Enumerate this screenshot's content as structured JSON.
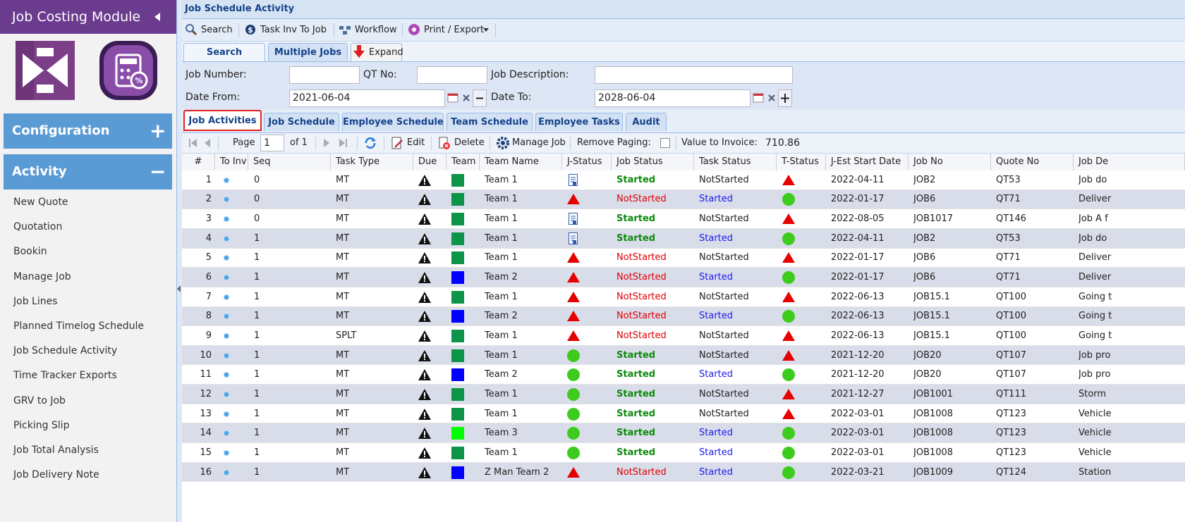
{
  "sidebar": {
    "title": "Job Costing Module",
    "sections": [
      {
        "label": "Configuration",
        "sign": "+"
      },
      {
        "label": "Activity",
        "sign": "−"
      }
    ],
    "menu": [
      "New Quote",
      "Quotation",
      "Bookin",
      "Manage Job",
      "Job Lines",
      "Planned Timelog Schedule",
      "Job Schedule Activity",
      "Time Tracker Exports",
      "GRV to Job",
      "Picking Slip",
      "Job Total Analysis",
      "Job Delivery Note"
    ]
  },
  "header": {
    "title": "Job Schedule Activity"
  },
  "toolbar": [
    "Search",
    "Task Inv To Job",
    "Workflow",
    "Print / Export"
  ],
  "search_tabs": [
    "Search",
    "Multiple Jobs",
    "Expand"
  ],
  "form": {
    "job_number": {
      "label": "Job Number:",
      "value": ""
    },
    "qt_no": {
      "label": "QT No:",
      "value": ""
    },
    "job_description": {
      "label": "Job Description:",
      "value": ""
    },
    "date_from": {
      "label": "Date From:",
      "value": "2021-06-04"
    },
    "date_to": {
      "label": "Date To:",
      "value": "2028-06-04"
    }
  },
  "tabs": [
    "Job Activities",
    "Job Schedule",
    "Employee Schedule",
    "Team Schedule",
    "Employee Tasks",
    "Audit"
  ],
  "paging": {
    "page_label": "Page",
    "page": "1",
    "of": "of 1",
    "edit": "Edit",
    "delete": "Delete",
    "manage": "Manage Job",
    "remove_paging": "Remove Paging:",
    "value_label": "Value to Invoice:",
    "value": "710.86"
  },
  "table": {
    "columns": [
      "#",
      "To Inv",
      "Seq",
      "Task Type",
      "Due",
      "Team C",
      "Team Name",
      "J-Status",
      "Job Status",
      "Task Status",
      "T-Status",
      "J-Est Start Date",
      "Job No",
      "Quote No",
      "Job De"
    ],
    "rows": [
      {
        "cells": [
          "1",
          "0",
          "MT",
          "Team 1",
          "Started",
          "NotStarted",
          "2022-04-11",
          "JOB2",
          "QT53",
          "Job do"
        ],
        "team_color": "#0c9448",
        "job_status_color": "#0b8a0b",
        "task_status_color": "#222222",
        "j_status": "doc",
        "t_status": "triangle"
      },
      {
        "cells": [
          "2",
          "0",
          "MT",
          "Team 1",
          "NotStarted",
          "Started",
          "2022-01-17",
          "JOB6",
          "QT71",
          "Deliver"
        ],
        "team_color": "#0c9448",
        "job_status_color": "#e00000",
        "task_status_color": "#1a1aee",
        "j_status": "triangle",
        "t_status": "circle"
      },
      {
        "cells": [
          "3",
          "0",
          "MT",
          "Team 1",
          "Started",
          "NotStarted",
          "2022-08-05",
          "JOB1017",
          "QT146",
          "Job A f"
        ],
        "team_color": "#0c9448",
        "job_status_color": "#0b8a0b",
        "task_status_color": "#222222",
        "j_status": "doc",
        "t_status": "triangle"
      },
      {
        "cells": [
          "4",
          "1",
          "MT",
          "Team 1",
          "Started",
          "Started",
          "2022-04-11",
          "JOB2",
          "QT53",
          "Job do"
        ],
        "team_color": "#0c9448",
        "job_status_color": "#0b8a0b",
        "task_status_color": "#1a1aee",
        "j_status": "doc",
        "t_status": "circle"
      },
      {
        "cells": [
          "5",
          "1",
          "MT",
          "Team 1",
          "NotStarted",
          "NotStarted",
          "2022-01-17",
          "JOB6",
          "QT71",
          "Deliver"
        ],
        "team_color": "#0c9448",
        "job_status_color": "#e00000",
        "task_status_color": "#222222",
        "j_status": "triangle",
        "t_status": "triangle"
      },
      {
        "cells": [
          "6",
          "1",
          "MT",
          "Team 2",
          "NotStarted",
          "Started",
          "2022-01-17",
          "JOB6",
          "QT71",
          "Deliver"
        ],
        "team_color": "#0000ff",
        "job_status_color": "#e00000",
        "task_status_color": "#1a1aee",
        "j_status": "triangle",
        "t_status": "circle"
      },
      {
        "cells": [
          "7",
          "1",
          "MT",
          "Team 1",
          "NotStarted",
          "NotStarted",
          "2022-06-13",
          "JOB15.1",
          "QT100",
          "Going t"
        ],
        "team_color": "#0c9448",
        "job_status_color": "#e00000",
        "task_status_color": "#222222",
        "j_status": "triangle",
        "t_status": "triangle"
      },
      {
        "cells": [
          "8",
          "1",
          "MT",
          "Team 2",
          "NotStarted",
          "Started",
          "2022-06-13",
          "JOB15.1",
          "QT100",
          "Going t"
        ],
        "team_color": "#0000ff",
        "job_status_color": "#e00000",
        "task_status_color": "#1a1aee",
        "j_status": "triangle",
        "t_status": "circle"
      },
      {
        "cells": [
          "9",
          "1",
          "SPLT",
          "Team 1",
          "NotStarted",
          "NotStarted",
          "2022-06-13",
          "JOB15.1",
          "QT100",
          "Going t"
        ],
        "team_color": "#0c9448",
        "job_status_color": "#e00000",
        "task_status_color": "#222222",
        "j_status": "triangle",
        "t_status": "triangle"
      },
      {
        "cells": [
          "10",
          "1",
          "MT",
          "Team 1",
          "Started",
          "NotStarted",
          "2021-12-20",
          "JOB20",
          "QT107",
          "Job pro"
        ],
        "team_color": "#0c9448",
        "job_status_color": "#0b8a0b",
        "task_status_color": "#222222",
        "j_status": "circle",
        "t_status": "triangle"
      },
      {
        "cells": [
          "11",
          "1",
          "MT",
          "Team 2",
          "Started",
          "Started",
          "2021-12-20",
          "JOB20",
          "QT107",
          "Job pro"
        ],
        "team_color": "#0000ff",
        "job_status_color": "#0b8a0b",
        "task_status_color": "#1a1aee",
        "j_status": "circle",
        "t_status": "circle"
      },
      {
        "cells": [
          "12",
          "1",
          "MT",
          "Team 1",
          "Started",
          "NotStarted",
          "2021-12-27",
          "JOB1001",
          "QT111",
          "Storm"
        ],
        "team_color": "#0c9448",
        "job_status_color": "#0b8a0b",
        "task_status_color": "#222222",
        "j_status": "circle",
        "t_status": "triangle"
      },
      {
        "cells": [
          "13",
          "1",
          "MT",
          "Team 1",
          "Started",
          "NotStarted",
          "2022-03-01",
          "JOB1008",
          "QT123",
          "Vehicle"
        ],
        "team_color": "#0c9448",
        "job_status_color": "#0b8a0b",
        "task_status_color": "#222222",
        "j_status": "circle",
        "t_status": "triangle"
      },
      {
        "cells": [
          "14",
          "1",
          "MT",
          "Team 3",
          "Started",
          "Started",
          "2022-03-01",
          "JOB1008",
          "QT123",
          "Vehicle"
        ],
        "team_color": "#00ff00",
        "job_status_color": "#0b8a0b",
        "task_status_color": "#1a1aee",
        "j_status": "circle",
        "t_status": "circle"
      },
      {
        "cells": [
          "15",
          "1",
          "MT",
          "Team 1",
          "Started",
          "Started",
          "2022-03-01",
          "JOB1008",
          "QT123",
          "Vehicle"
        ],
        "team_color": "#0c9448",
        "job_status_color": "#0b8a0b",
        "task_status_color": "#1a1aee",
        "j_status": "circle",
        "t_status": "circle"
      },
      {
        "cells": [
          "16",
          "1",
          "MT",
          "Z Man Team 2",
          "NotStarted",
          "Started",
          "2022-03-21",
          "JOB1009",
          "QT124",
          "Station"
        ],
        "team_color": "#0000ff",
        "job_status_color": "#e00000",
        "task_status_color": "#1a1aee",
        "j_status": "triangle",
        "t_status": "circle"
      }
    ]
  }
}
